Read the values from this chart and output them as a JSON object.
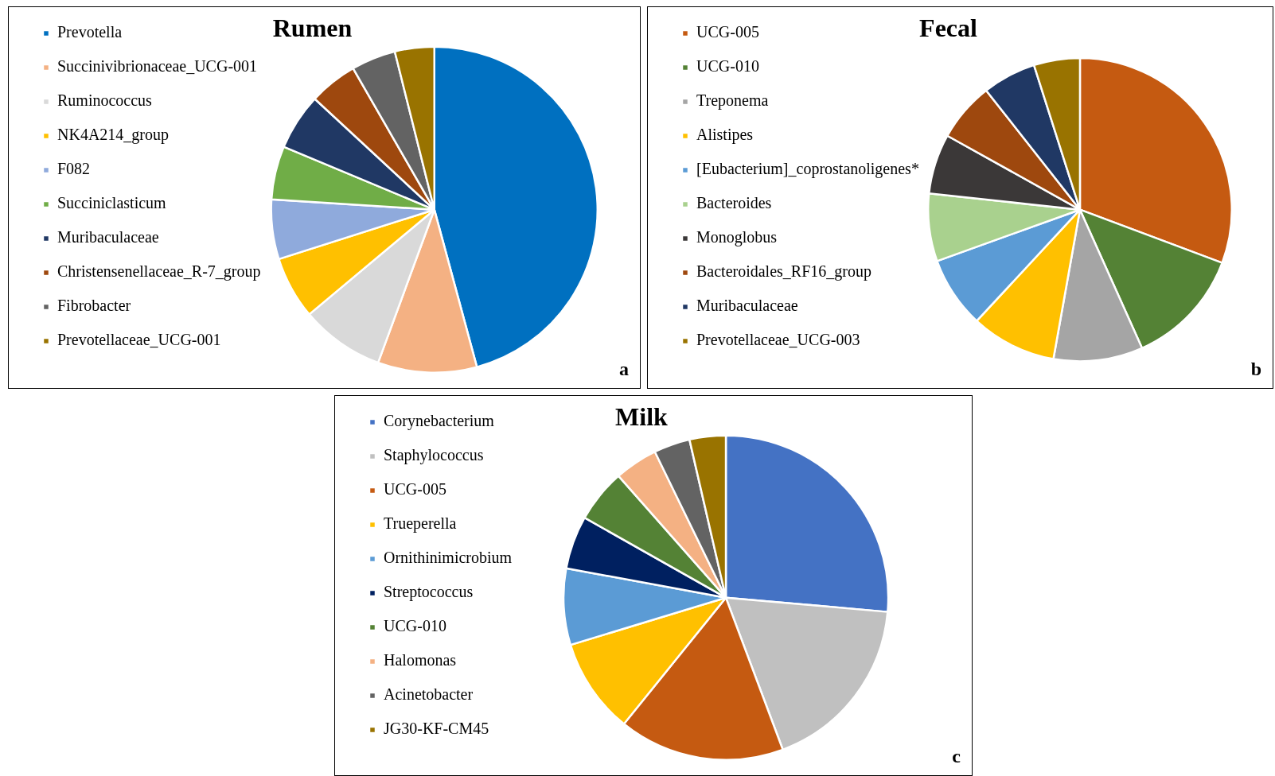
{
  "chart_data": [
    {
      "type": "pie",
      "title": "Rumen",
      "legend": "left",
      "annotations": [
        "a"
      ],
      "categories": [
        "Prevotella",
        "Succinivibrionaceae_UCG-001",
        "Ruminococcus",
        "NK4A214_group",
        "F082",
        "Succiniclasticum",
        "Muribaculaceae",
        "Christensenellaceae_R-7_group",
        "Fibrobacter",
        "Prevotellaceae_UCG-001"
      ],
      "values": [
        45.8,
        9.8,
        8.3,
        6.2,
        5.9,
        5.3,
        5.6,
        4.8,
        4.4,
        3.9
      ],
      "colors": [
        "#0070c0",
        "#f4b183",
        "#d9d9d9",
        "#ffc000",
        "#8faadc",
        "#70ad47",
        "#203864",
        "#9e480e",
        "#636363",
        "#997300"
      ]
    },
    {
      "type": "pie",
      "title": "Fecal",
      "legend": "left",
      "annotations": [
        "b"
      ],
      "categories": [
        "UCG-005",
        "UCG-010",
        "Treponema",
        "Alistipes",
        "[Eubacterium]_coprostanoligenes*",
        "Bacteroides",
        "Monoglobus",
        "Bacteroidales_RF16_group",
        "Muribaculaceae",
        "Prevotellaceae_UCG-003"
      ],
      "values": [
        30.7,
        12.6,
        9.5,
        9.1,
        7.6,
        7.2,
        6.4,
        6.3,
        5.7,
        4.9
      ],
      "colors": [
        "#c55a11",
        "#548235",
        "#a5a5a5",
        "#ffc000",
        "#5b9bd5",
        "#a9d18e",
        "#3b3838",
        "#9e480e",
        "#203864",
        "#997300"
      ]
    },
    {
      "type": "pie",
      "title": "Milk",
      "legend": "left",
      "annotations": [
        "c"
      ],
      "categories": [
        "Corynebacterium",
        "Staphylococcus",
        "UCG-005",
        "Trueperella",
        "Ornithinimicrobium",
        "Streptococcus",
        "UCG-010",
        "Halomonas",
        "Acinetobacter",
        "JG30-KF-CM45"
      ],
      "values": [
        26.4,
        17.9,
        16.5,
        9.5,
        7.6,
        5.3,
        5.3,
        4.3,
        3.6,
        3.6
      ],
      "colors": [
        "#4472c4",
        "#c0c0c0",
        "#c55a11",
        "#ffc000",
        "#5b9bd5",
        "#002060",
        "#548235",
        "#f4b183",
        "#636363",
        "#997300"
      ]
    }
  ]
}
